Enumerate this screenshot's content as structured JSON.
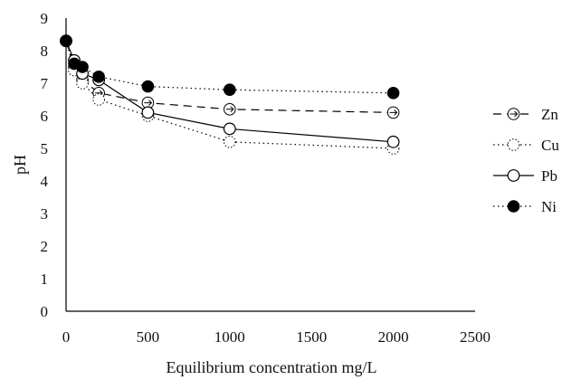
{
  "chart_data": {
    "type": "line",
    "title": "",
    "xlabel": "Equilibrium concentration mg/L",
    "ylabel": "pH",
    "xlim": [
      0,
      2500
    ],
    "ylim": [
      0,
      9
    ],
    "xticks": [
      "0",
      "500",
      "1000",
      "1500",
      "2000",
      "2500"
    ],
    "yticks": [
      "0",
      "1",
      "2",
      "3",
      "4",
      "5",
      "6",
      "7",
      "8",
      "9"
    ],
    "grid": false,
    "legend": "right",
    "series": [
      {
        "name": "Zn",
        "line_style": "dashed",
        "marker": "open-circle-with-arrow",
        "color": "#000000",
        "x": [
          0,
          50,
          100,
          200,
          500,
          1000,
          2000
        ],
        "y": [
          8.3,
          7.5,
          7.1,
          6.7,
          6.4,
          6.2,
          6.1
        ]
      },
      {
        "name": "Cu",
        "line_style": "dotted",
        "marker": "dotted-open-circle",
        "color": "#000000",
        "x": [
          0,
          50,
          100,
          200,
          500,
          1000,
          2000
        ],
        "y": [
          8.3,
          7.4,
          7.0,
          6.5,
          6.0,
          5.2,
          5.0
        ]
      },
      {
        "name": "Pb",
        "line_style": "solid",
        "marker": "open-circle",
        "color": "#000000",
        "x": [
          0,
          50,
          100,
          200,
          500,
          1000,
          2000
        ],
        "y": [
          8.3,
          7.7,
          7.3,
          7.1,
          6.1,
          5.6,
          5.2
        ]
      },
      {
        "name": "Ni",
        "line_style": "dotted",
        "marker": "filled-circle",
        "color": "#000000",
        "x": [
          0,
          50,
          100,
          200,
          500,
          1000,
          2000
        ],
        "y": [
          8.3,
          7.6,
          7.5,
          7.2,
          6.9,
          6.8,
          6.7
        ]
      }
    ]
  }
}
